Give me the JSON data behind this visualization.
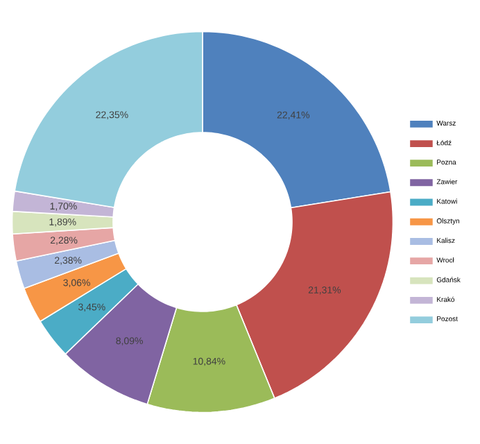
{
  "chart_data": {
    "type": "donut",
    "categories": [
      "Warsz",
      "Łódź",
      "Pozna",
      "Zawier",
      "Katowi",
      "Olsztyn",
      "Kalisz",
      "Wrocł",
      "Gdańsk",
      "Krakó",
      "Pozost"
    ],
    "values": [
      22.41,
      21.31,
      10.84,
      8.09,
      3.45,
      3.06,
      2.38,
      2.28,
      1.89,
      1.7,
      22.35
    ],
    "value_labels": [
      "22,41%",
      "21,31%",
      "10,84%",
      "8,09%",
      "3,45%",
      "3,06%",
      "2,38%",
      "2,28%",
      "1,89%",
      "1,70%",
      "22,35%"
    ],
    "colors": [
      "#4f81bd",
      "#c0504d",
      "#9bbb59",
      "#8064a2",
      "#4bacc6",
      "#f79646",
      "#a9bde3",
      "#e6a6a5",
      "#d7e4bd",
      "#c3b5d6",
      "#93cddd"
    ],
    "legend": "right"
  }
}
